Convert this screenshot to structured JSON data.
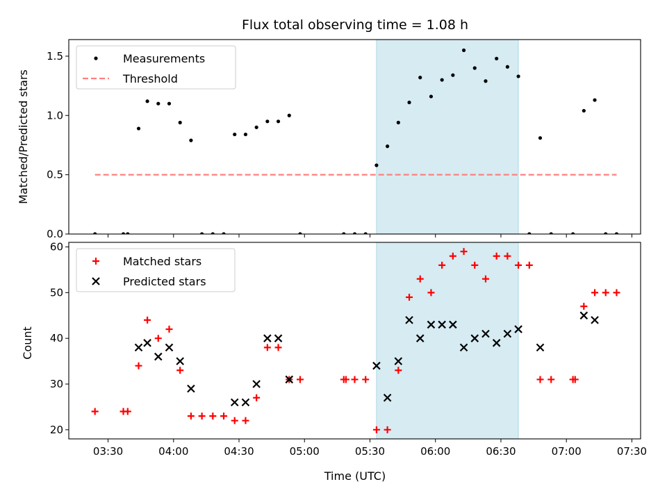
{
  "chart_data": [
    {
      "type": "scatter",
      "title": "Flux total observing time = 1.08 h",
      "ylabel": "Matched/Predicted stars",
      "xlabel": "",
      "xlim": [
        "03:12",
        "07:34"
      ],
      "ylim": [
        0,
        1.64
      ],
      "yticks": [
        0.0,
        0.5,
        1.0,
        1.5
      ],
      "ytick_labels": [
        "0.0",
        "0.5",
        "1.0",
        "1.5"
      ],
      "grid": false,
      "legend": "upper-left",
      "shaded_span": {
        "x": [
          "05:33",
          "06:38"
        ],
        "color": "#add8e6"
      },
      "series": [
        {
          "name": "Measurements",
          "marker": "dot",
          "color": "#000000",
          "x": [
            "03:24",
            "03:37",
            "03:39",
            "03:44",
            "03:48",
            "03:53",
            "03:58",
            "04:03",
            "04:08",
            "04:13",
            "04:18",
            "04:23",
            "04:28",
            "04:33",
            "04:38",
            "04:43",
            "04:48",
            "04:53",
            "04:58",
            "05:18",
            "05:23",
            "05:28",
            "05:33",
            "05:38",
            "05:43",
            "05:48",
            "05:53",
            "05:58",
            "06:03",
            "06:08",
            "06:13",
            "06:18",
            "06:23",
            "06:28",
            "06:33",
            "06:38",
            "06:43",
            "06:48",
            "06:53",
            "07:03",
            "07:08",
            "07:13",
            "07:18",
            "07:23"
          ],
          "y": [
            0.0,
            0.0,
            0.0,
            0.89,
            1.12,
            1.1,
            1.1,
            0.94,
            0.79,
            0.0,
            0.0,
            0.0,
            0.84,
            0.84,
            0.9,
            0.95,
            0.95,
            1.0,
            0.0,
            0.0,
            0.0,
            0.0,
            0.58,
            0.74,
            0.94,
            1.11,
            1.32,
            1.16,
            1.3,
            1.34,
            1.55,
            1.4,
            1.29,
            1.48,
            1.41,
            1.33,
            0.0,
            0.81,
            0.0,
            0.0,
            1.04,
            1.13,
            0.0,
            0.0
          ]
        },
        {
          "name": "Threshold",
          "marker": "dashed-line",
          "color": "#ff7f7f",
          "x": [
            "03:24",
            "07:23"
          ],
          "y": [
            0.5,
            0.5
          ]
        }
      ]
    },
    {
      "type": "scatter",
      "title": "",
      "ylabel": "Count",
      "xlabel": "Time (UTC)",
      "xlim": [
        "03:12",
        "07:34"
      ],
      "ylim": [
        18,
        61
      ],
      "yticks": [
        20,
        30,
        40,
        50,
        60
      ],
      "ytick_labels": [
        "20",
        "30",
        "40",
        "50",
        "60"
      ],
      "xticks": [
        "03:30",
        "04:00",
        "04:30",
        "05:00",
        "05:30",
        "06:00",
        "06:30",
        "07:00",
        "07:30"
      ],
      "grid": false,
      "legend": "upper-left",
      "shaded_span": {
        "x": [
          "05:33",
          "06:38"
        ],
        "color": "#add8e6"
      },
      "series": [
        {
          "name": "Matched stars",
          "marker": "plus",
          "color": "#ff0000",
          "x": [
            "03:24",
            "03:37",
            "03:39",
            "03:44",
            "03:48",
            "03:53",
            "03:58",
            "04:03",
            "04:08",
            "04:13",
            "04:18",
            "04:23",
            "04:28",
            "04:33",
            "04:38",
            "04:43",
            "04:48",
            "04:53",
            "04:58",
            "05:18",
            "05:19",
            "05:23",
            "05:28",
            "05:33",
            "05:38",
            "05:43",
            "05:48",
            "05:53",
            "05:58",
            "06:03",
            "06:08",
            "06:13",
            "06:18",
            "06:23",
            "06:28",
            "06:33",
            "06:38",
            "06:43",
            "06:48",
            "06:53",
            "07:03",
            "07:04",
            "07:08",
            "07:13",
            "07:18",
            "07:23"
          ],
          "y": [
            24,
            24,
            24,
            34,
            44,
            40,
            42,
            33,
            23,
            23,
            23,
            23,
            22,
            22,
            27,
            38,
            38,
            31,
            31,
            31,
            31,
            31,
            31,
            20,
            20,
            33,
            49,
            53,
            50,
            56,
            58,
            59,
            56,
            53,
            58,
            58,
            56,
            56,
            31,
            31,
            31,
            31,
            47,
            50,
            50,
            50
          ]
        },
        {
          "name": "Predicted stars",
          "marker": "x",
          "color": "#000000",
          "x": [
            "03:44",
            "03:48",
            "03:53",
            "03:58",
            "04:03",
            "04:08",
            "04:28",
            "04:33",
            "04:38",
            "04:43",
            "04:48",
            "04:53",
            "05:33",
            "05:38",
            "05:43",
            "05:48",
            "05:53",
            "05:58",
            "06:03",
            "06:08",
            "06:13",
            "06:18",
            "06:23",
            "06:28",
            "06:33",
            "06:38",
            "06:48",
            "07:08",
            "07:13"
          ],
          "y": [
            38,
            39,
            36,
            38,
            35,
            29,
            26,
            26,
            30,
            40,
            40,
            31,
            34,
            27,
            35,
            44,
            40,
            43,
            43,
            43,
            38,
            40,
            41,
            39,
            41,
            42,
            38,
            45,
            44
          ]
        }
      ]
    }
  ]
}
